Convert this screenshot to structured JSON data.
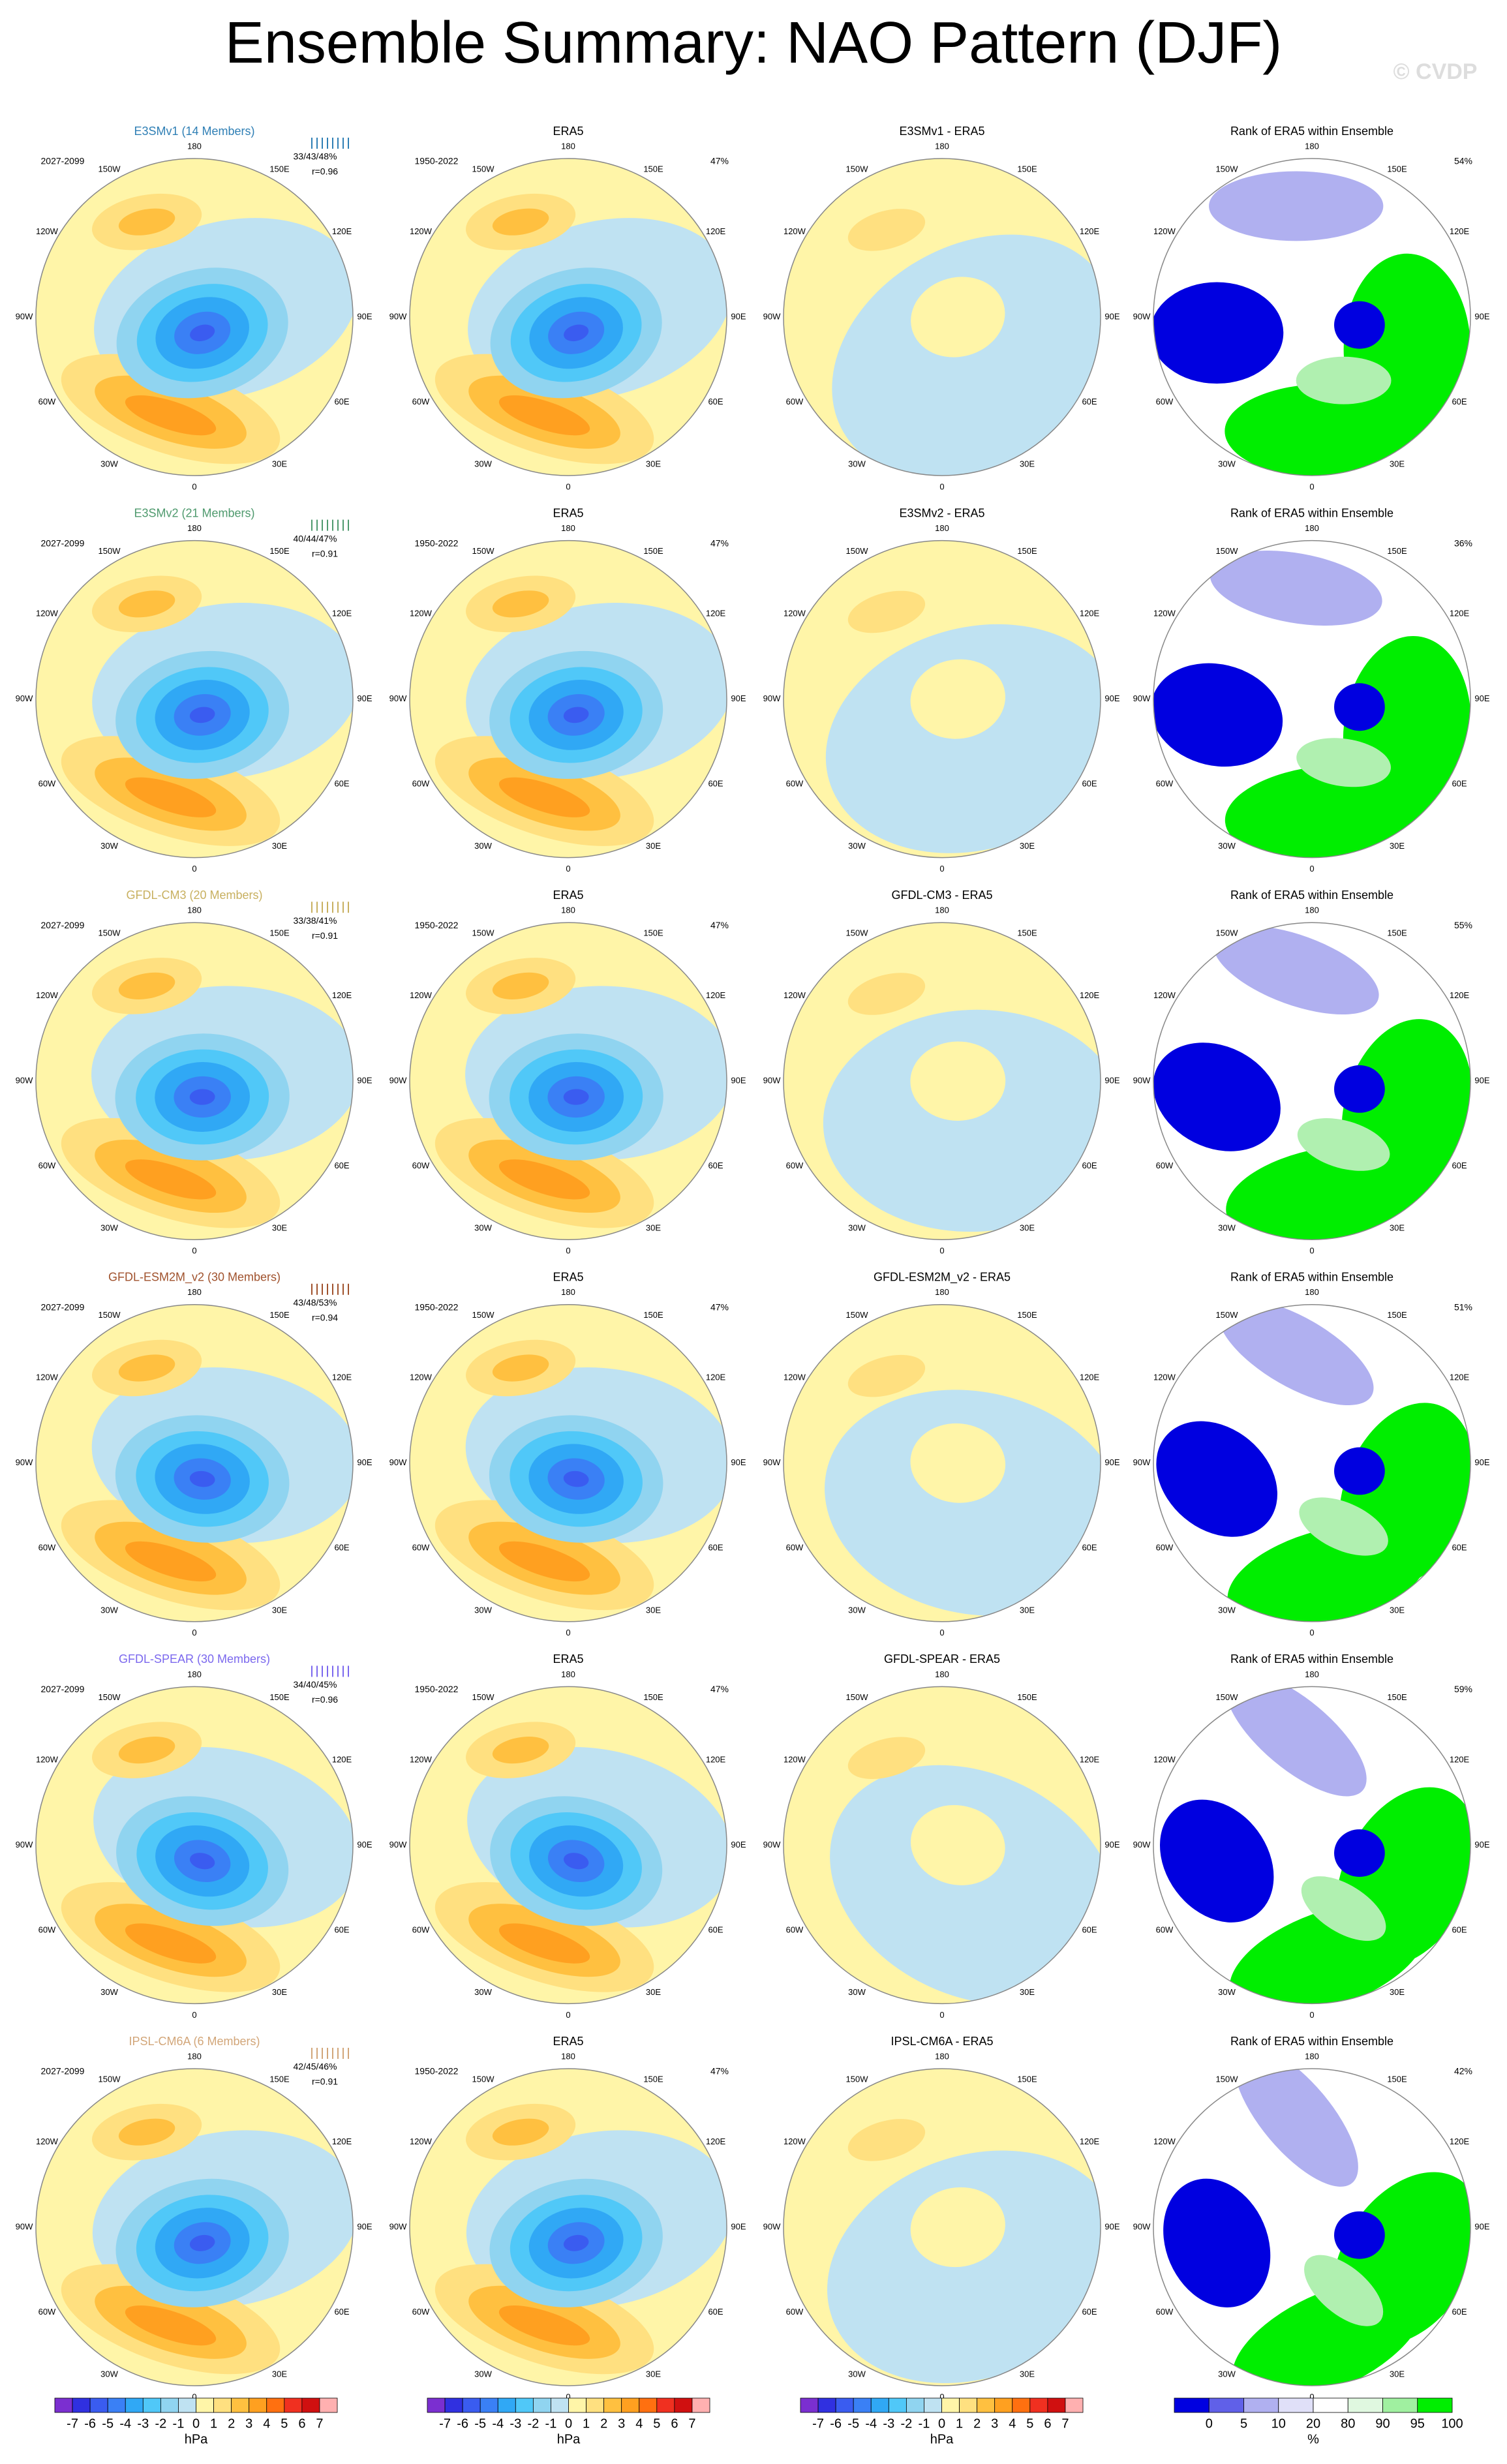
{
  "title": "Ensemble Summary: NAO Pattern (DJF)",
  "watermark": "© CVDP",
  "lon_labels": [
    "180",
    "150E",
    "120E",
    "90E",
    "60E",
    "30E",
    "0",
    "30W",
    "60W",
    "90W",
    "120W",
    "150W"
  ],
  "rows": [
    {
      "model": "E3SMv1 (14 Members)",
      "color": "#2f7fb5",
      "period": "2027-2099",
      "pcts": "33/43/48%",
      "r": "r=0.96",
      "obs_title": "ERA5",
      "obs_period": "1950-2022",
      "obs_pct": "47%",
      "diff_title": "E3SMv1 - ERA5",
      "rank_title": "Rank of ERA5 within Ensemble",
      "rank_pct": "54%"
    },
    {
      "model": "E3SMv2 (21 Members)",
      "color": "#4f9a6e",
      "period": "2027-2099",
      "pcts": "40/44/47%",
      "r": "r=0.91",
      "obs_title": "ERA5",
      "obs_period": "1950-2022",
      "obs_pct": "47%",
      "diff_title": "E3SMv2 - ERA5",
      "rank_title": "Rank of ERA5 within Ensemble",
      "rank_pct": "36%"
    },
    {
      "model": "GFDL-CM3 (20 Members)",
      "color": "#c8b060",
      "period": "2027-2099",
      "pcts": "33/38/41%",
      "r": "r=0.91",
      "obs_title": "ERA5",
      "obs_period": "1950-2022",
      "obs_pct": "47%",
      "diff_title": "GFDL-CM3 - ERA5",
      "rank_title": "Rank of ERA5 within Ensemble",
      "rank_pct": "55%"
    },
    {
      "model": "GFDL-ESM2M_v2 (30 Members)",
      "color": "#a0522d",
      "period": "2027-2099",
      "pcts": "43/48/53%",
      "r": "r=0.94",
      "obs_title": "ERA5",
      "obs_period": "1950-2022",
      "obs_pct": "47%",
      "diff_title": "GFDL-ESM2M_v2 - ERA5",
      "rank_title": "Rank of ERA5 within Ensemble",
      "rank_pct": "51%"
    },
    {
      "model": "GFDL-SPEAR (30 Members)",
      "color": "#7b68ee",
      "period": "2027-2099",
      "pcts": "34/40/45%",
      "r": "r=0.96",
      "obs_title": "ERA5",
      "obs_period": "1950-2022",
      "obs_pct": "47%",
      "diff_title": "GFDL-SPEAR - ERA5",
      "rank_title": "Rank of ERA5 within Ensemble",
      "rank_pct": "59%"
    },
    {
      "model": "IPSL-CM6A (6 Members)",
      "color": "#d2a679",
      "period": "2027-2099",
      "pcts": "42/45/46%",
      "r": "r=0.91",
      "obs_title": "ERA5",
      "obs_period": "1950-2022",
      "obs_pct": "47%",
      "diff_title": "IPSL-CM6A - ERA5",
      "rank_title": "Rank of ERA5 within Ensemble",
      "rank_pct": "42%"
    }
  ],
  "colorbars": {
    "hpa": {
      "labels": [
        -7,
        -6,
        -5,
        -4,
        -3,
        -2,
        -1,
        0,
        1,
        2,
        3,
        4,
        5,
        6,
        7
      ],
      "unit": "hPa"
    },
    "rank": {
      "labels": [
        0,
        5,
        10,
        20,
        80,
        90,
        95,
        100
      ],
      "unit": "%"
    }
  }
}
